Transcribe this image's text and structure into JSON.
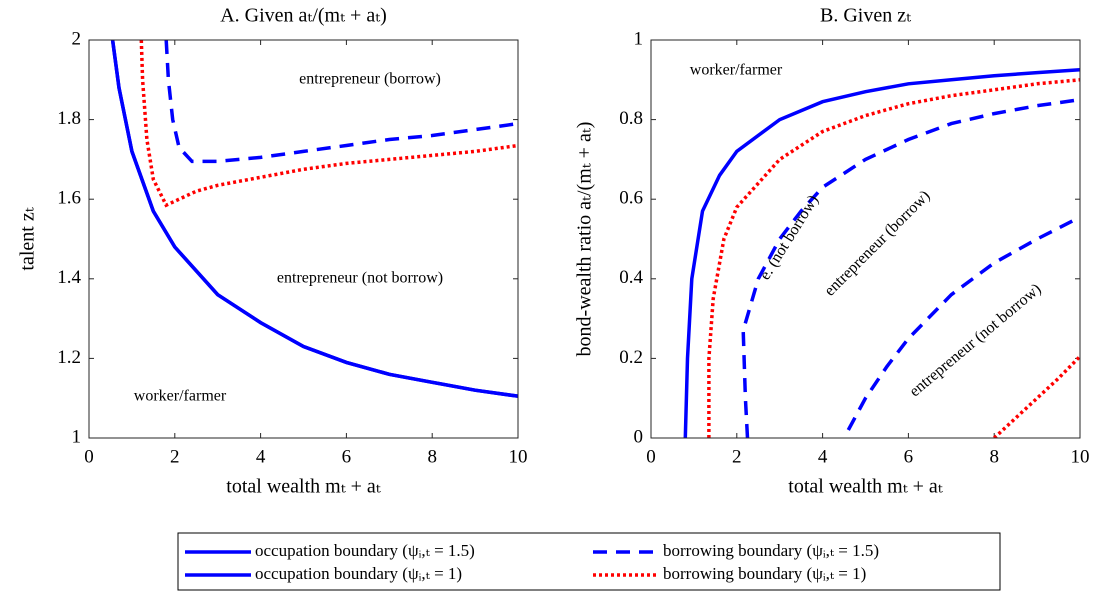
{
  "chart_data": [
    {
      "type": "line",
      "title": "A. Given aₜ/(mₜ + aₜ)",
      "x_label": "total wealth mₜ + aₜ",
      "y_label": "talent zₜ",
      "xlim": [
        0,
        10
      ],
      "ylim": [
        1,
        2
      ],
      "xticks": [
        0,
        2,
        4,
        6,
        8,
        10
      ],
      "yticks": [
        1,
        1.2,
        1.4,
        1.6,
        1.8,
        2
      ],
      "annotations": [
        "entrepreneur (borrow)",
        "entrepreneur (not borrow)",
        "worker/farmer"
      ],
      "series": [
        {
          "name": "occupation boundary (ψᵢ,ₜ = 1.5)",
          "color": "#0000ff",
          "dash": "solid",
          "x": [
            0.55,
            0.7,
            1,
            1.5,
            2,
            3,
            4,
            5,
            6,
            7,
            8,
            9,
            10
          ],
          "values": [
            2.0,
            1.88,
            1.72,
            1.57,
            1.48,
            1.36,
            1.29,
            1.23,
            1.19,
            1.16,
            1.14,
            1.12,
            1.105
          ]
        },
        {
          "name": "occupation boundary (ψᵢ,ₜ = 1)",
          "color": "#0000ff",
          "dash": "solid",
          "x": [
            0.55,
            0.7,
            1,
            1.5,
            2,
            3,
            4,
            5,
            6,
            7,
            8,
            9,
            10
          ],
          "values": [
            2.0,
            1.88,
            1.72,
            1.57,
            1.48,
            1.36,
            1.29,
            1.23,
            1.19,
            1.16,
            1.14,
            1.12,
            1.105
          ]
        },
        {
          "name": "borrowing boundary (ψᵢ,ₜ = 1.5)",
          "color": "#0000ff",
          "dash": "dashed",
          "x": [
            1.8,
            1.85,
            1.95,
            2.1,
            2.4,
            3,
            4,
            5,
            6,
            7,
            8,
            9,
            10
          ],
          "values": [
            2.0,
            1.9,
            1.8,
            1.73,
            1.695,
            1.695,
            1.705,
            1.72,
            1.735,
            1.75,
            1.76,
            1.775,
            1.79
          ]
        },
        {
          "name": "borrowing boundary (ψᵢ,ₜ = 1)",
          "color": "#ff0000",
          "dash": "dotted",
          "x": [
            1.22,
            1.25,
            1.35,
            1.5,
            1.8,
            2.5,
            3,
            4,
            5,
            6,
            7,
            8,
            9,
            10
          ],
          "values": [
            2.0,
            1.9,
            1.75,
            1.65,
            1.585,
            1.62,
            1.635,
            1.655,
            1.675,
            1.69,
            1.7,
            1.71,
            1.72,
            1.735
          ]
        }
      ]
    },
    {
      "type": "line",
      "title": "B. Given zₜ",
      "x_label": "total wealth mₜ + aₜ",
      "y_label": "bond-wealth ratio aₜ/(mₜ + aₜ)",
      "xlim": [
        0,
        10
      ],
      "ylim": [
        0,
        1
      ],
      "xticks": [
        0,
        2,
        4,
        6,
        8,
        10
      ],
      "yticks": [
        0,
        0.2,
        0.4,
        0.6,
        0.8,
        1
      ],
      "annotations": [
        "worker/farmer",
        "e. (not borrow)",
        "entrepreneur (borrow)",
        "entrepreneur (not borrow)"
      ],
      "series": [
        {
          "name": "occupation boundary",
          "color": "#0000ff",
          "dash": "solid",
          "x": [
            0.8,
            0.85,
            0.95,
            1.2,
            1.6,
            2,
            3,
            4,
            5,
            6,
            7,
            8,
            9,
            10
          ],
          "values": [
            0,
            0.2,
            0.4,
            0.57,
            0.66,
            0.72,
            0.8,
            0.845,
            0.87,
            0.89,
            0.9,
            0.91,
            0.918,
            0.925
          ]
        },
        {
          "name": "borrowing boundary (ψᵢ,ₜ = 1.5)",
          "color": "#0000ff",
          "dash": "dashed",
          "x": [
            2.25,
            2.2,
            2.15,
            2.5,
            3,
            3.5,
            4,
            5,
            6,
            7,
            8,
            9,
            10,
            null,
            4.6,
            5,
            5.5,
            6,
            7,
            8,
            9,
            10
          ],
          "values": [
            0,
            0.1,
            0.27,
            0.4,
            0.5,
            0.57,
            0.63,
            0.7,
            0.75,
            0.79,
            0.815,
            0.835,
            0.85,
            null,
            0.02,
            0.1,
            0.18,
            0.25,
            0.36,
            0.44,
            0.5,
            0.555
          ]
        },
        {
          "name": "borrowing boundary (ψᵢ,ₜ = 1)",
          "color": "#ff0000",
          "dash": "dotted",
          "x": [
            1.35,
            1.35,
            1.45,
            1.7,
            2,
            3,
            4,
            5,
            6,
            7,
            8,
            9,
            10,
            null,
            8,
            8.5,
            9,
            9.5,
            10
          ],
          "values": [
            0,
            0.2,
            0.35,
            0.5,
            0.58,
            0.7,
            0.77,
            0.81,
            0.84,
            0.86,
            0.875,
            0.89,
            0.9,
            null,
            0,
            0.05,
            0.1,
            0.15,
            0.205
          ]
        }
      ]
    }
  ]
}
